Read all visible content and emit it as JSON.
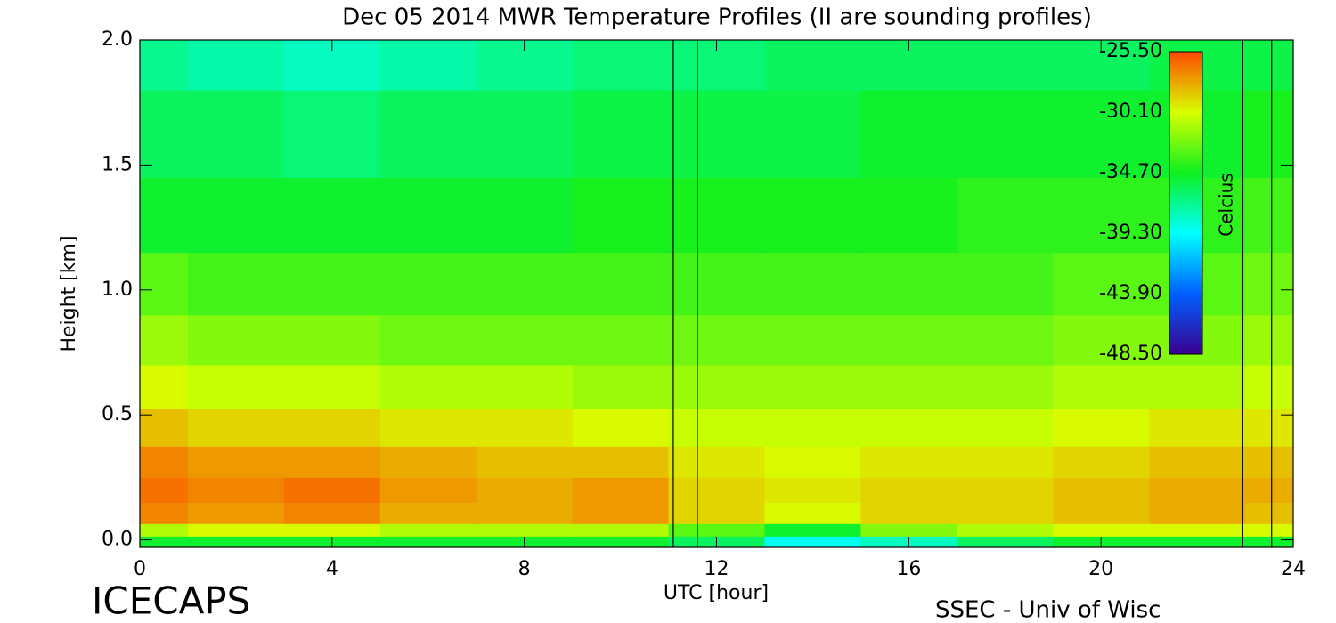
{
  "chart_data": {
    "type": "heatmap",
    "title": "Dec 05 2014 MWR Temperature Profiles (II are sounding profiles)",
    "xlabel": "UTC [hour]",
    "ylabel": "Height [km]",
    "footer_left": "ICECAPS",
    "footer_right": "SSEC - Univ of Wisc",
    "colorbar_label": "Celcius",
    "x": [
      0,
      2,
      4,
      6,
      8,
      10,
      12,
      14,
      16,
      18,
      20,
      22,
      24
    ],
    "y": [
      0,
      0.03,
      0.1,
      0.2,
      0.3,
      0.45,
      0.6,
      0.8,
      1.0,
      1.3,
      1.6,
      2.0
    ],
    "z": [
      [
        -35,
        -35,
        -35,
        -35,
        -35,
        -35,
        -36,
        -39,
        -38,
        -36,
        -35,
        -35,
        -35
      ],
      [
        -31,
        -30,
        -30,
        -31,
        -31,
        -31,
        -33,
        -35,
        -32,
        -31,
        -30,
        -30,
        -30
      ],
      [
        -27,
        -27.5,
        -27,
        -28,
        -28,
        -27.5,
        -29,
        -30,
        -29,
        -29,
        -28.5,
        -28,
        -28.5
      ],
      [
        -26.5,
        -27,
        -26.5,
        -27.5,
        -28,
        -27.5,
        -29,
        -29.5,
        -29,
        -29,
        -28.5,
        -28,
        -28
      ],
      [
        -27,
        -27.5,
        -27.5,
        -28,
        -28.5,
        -28.5,
        -29.5,
        -30,
        -29.5,
        -29.5,
        -29,
        -28.5,
        -28.5
      ],
      [
        -28.5,
        -29,
        -29,
        -29.5,
        -29.5,
        -30,
        -30.5,
        -30.5,
        -30.5,
        -30.5,
        -30,
        -29.5,
        -29.5
      ],
      [
        -30,
        -30.5,
        -30.5,
        -31,
        -31,
        -31.5,
        -31.5,
        -31.5,
        -31.5,
        -31.5,
        -31,
        -31,
        -30.5
      ],
      [
        -31.5,
        -32,
        -32,
        -32.5,
        -32.5,
        -32.5,
        -32.5,
        -32.5,
        -32.5,
        -32.5,
        -32,
        -32,
        -31.5
      ],
      [
        -33,
        -33.5,
        -33.5,
        -33.5,
        -33.5,
        -33.5,
        -33.5,
        -33.5,
        -33.5,
        -33.5,
        -33,
        -33,
        -32.5
      ],
      [
        -35,
        -35,
        -35,
        -35,
        -35,
        -34.5,
        -34.5,
        -34.5,
        -34.5,
        -34,
        -34,
        -34,
        -33.5
      ],
      [
        -36,
        -36,
        -36.5,
        -36,
        -36,
        -35.5,
        -35.5,
        -35.5,
        -35,
        -35,
        -35,
        -35,
        -34.5
      ],
      [
        -37,
        -37.5,
        -38,
        -37.5,
        -37,
        -36.5,
        -36.5,
        -36,
        -36,
        -36,
        -36,
        -35.5,
        -35.5
      ]
    ],
    "sounding_lines": [
      11.1,
      11.6,
      22.95,
      23.55
    ],
    "xlim": [
      0,
      24
    ],
    "xticks": [
      0,
      4,
      8,
      12,
      16,
      20,
      24
    ],
    "ylim": [
      -0.03,
      2.0
    ],
    "yticks": [
      {
        "value": 0,
        "label": "0.0"
      },
      0.5,
      {
        "value": 1,
        "label": "1.0"
      },
      1.5,
      {
        "value": 2,
        "label": "2.0"
      }
    ],
    "colorbar_ticks": [
      {
        "value": -25.5,
        "label": "-25.50"
      },
      {
        "value": -30.1,
        "label": "-30.10"
      },
      {
        "value": -34.7,
        "label": "-34.70"
      },
      {
        "value": -39.3,
        "label": "-39.30"
      },
      {
        "value": -43.9,
        "label": "-43.90"
      },
      {
        "value": -48.5,
        "label": "-48.50"
      }
    ],
    "colorbar_colors": [
      "#ff4a00",
      "#d8ff00",
      "#10f020",
      "#00ffff",
      "#0060ff",
      "#3a0090"
    ]
  }
}
